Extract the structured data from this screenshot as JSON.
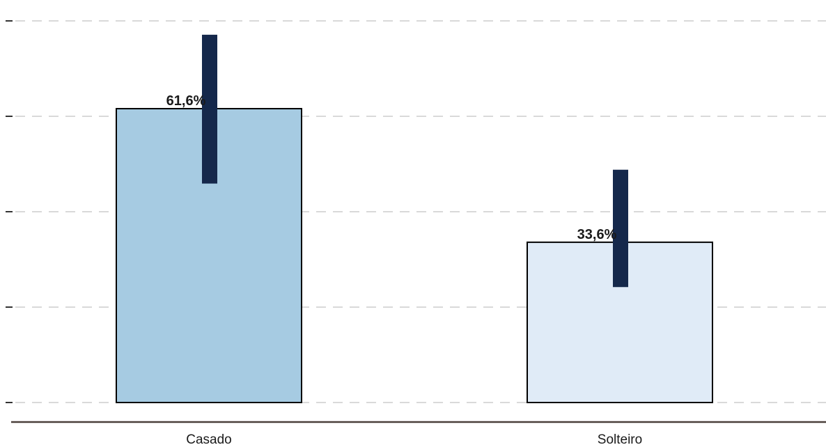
{
  "chart_data": {
    "type": "bar",
    "title": "",
    "xlabel": "",
    "ylabel": "",
    "ylim": [
      0,
      80
    ],
    "y_tick_values": [
      0,
      20,
      40,
      60,
      80
    ],
    "y_tick_labels_shown": false,
    "grid": true,
    "categories": [
      "Casado",
      "Solteiro"
    ],
    "values": [
      61.6,
      33.6
    ],
    "data_labels": [
      "61,6%",
      "33,6%"
    ],
    "error_bars": [
      {
        "low": 45.9,
        "high": 77.1
      },
      {
        "low": 24.2,
        "high": 48.8
      }
    ],
    "bar_colors": [
      "#a6cbe2",
      "#e0ebf7"
    ],
    "error_bar_color": "#15284b",
    "legend": "none"
  }
}
